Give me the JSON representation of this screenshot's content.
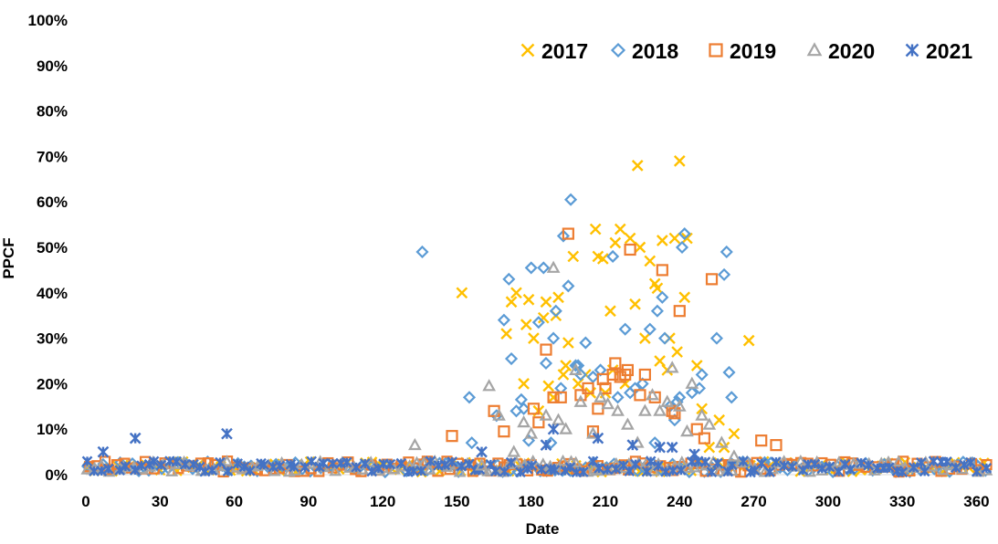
{
  "chart_data": {
    "type": "scatter",
    "xlabel": "Date",
    "ylabel": "PPCF",
    "xlim": [
      0,
      365
    ],
    "ylim": [
      0,
      1
    ],
    "x_ticks": [
      "0",
      "30",
      "60",
      "90",
      "120",
      "150",
      "180",
      "210",
      "240",
      "270",
      "300",
      "330",
      "360"
    ],
    "y_ticks": [
      "0%",
      "10%",
      "20%",
      "30%",
      "40%",
      "50%",
      "60%",
      "70%",
      "80%",
      "90%",
      "100%"
    ],
    "grid": false,
    "legend_position": "top-right",
    "series": [
      {
        "name": "2017",
        "marker": "x",
        "color": "#FFC000",
        "points": [
          [
            152,
            0.4
          ],
          [
            170,
            0.31
          ],
          [
            172,
            0.38
          ],
          [
            174,
            0.4
          ],
          [
            177,
            0.2
          ],
          [
            178,
            0.33
          ],
          [
            179,
            0.385
          ],
          [
            181,
            0.3
          ],
          [
            183,
            0.14
          ],
          [
            185,
            0.345
          ],
          [
            186,
            0.38
          ],
          [
            187,
            0.195
          ],
          [
            189,
            0.17
          ],
          [
            190,
            0.35
          ],
          [
            191,
            0.39
          ],
          [
            193,
            0.22
          ],
          [
            194,
            0.24
          ],
          [
            195,
            0.29
          ],
          [
            197,
            0.48
          ],
          [
            199,
            0.2
          ],
          [
            202,
            0.22
          ],
          [
            204,
            0.18
          ],
          [
            206,
            0.54
          ],
          [
            207,
            0.48
          ],
          [
            209,
            0.475
          ],
          [
            210,
            0.18
          ],
          [
            212,
            0.36
          ],
          [
            213,
            0.23
          ],
          [
            214,
            0.51
          ],
          [
            216,
            0.54
          ],
          [
            218,
            0.2
          ],
          [
            220,
            0.52
          ],
          [
            222,
            0.375
          ],
          [
            223,
            0.68
          ],
          [
            224,
            0.5
          ],
          [
            226,
            0.3
          ],
          [
            228,
            0.47
          ],
          [
            230,
            0.42
          ],
          [
            231,
            0.41
          ],
          [
            232,
            0.25
          ],
          [
            233,
            0.515
          ],
          [
            235,
            0.23
          ],
          [
            236,
            0.3
          ],
          [
            238,
            0.52
          ],
          [
            239,
            0.27
          ],
          [
            240,
            0.69
          ],
          [
            242,
            0.39
          ],
          [
            243,
            0.52
          ],
          [
            247,
            0.24
          ],
          [
            249,
            0.145
          ],
          [
            252,
            0.06
          ],
          [
            256,
            0.12
          ],
          [
            258,
            0.06
          ],
          [
            262,
            0.09
          ],
          [
            268,
            0.295
          ]
        ]
      },
      {
        "name": "2018",
        "marker": "diamond",
        "color": "#5B9BD5",
        "points": [
          [
            136,
            0.49
          ],
          [
            155,
            0.17
          ],
          [
            156,
            0.07
          ],
          [
            166,
            0.13
          ],
          [
            169,
            0.34
          ],
          [
            171,
            0.43
          ],
          [
            172,
            0.255
          ],
          [
            174,
            0.14
          ],
          [
            176,
            0.165
          ],
          [
            177,
            0.145
          ],
          [
            179,
            0.075
          ],
          [
            180,
            0.455
          ],
          [
            183,
            0.335
          ],
          [
            185,
            0.455
          ],
          [
            186,
            0.245
          ],
          [
            188,
            0.07
          ],
          [
            189,
            0.3
          ],
          [
            190,
            0.36
          ],
          [
            192,
            0.19
          ],
          [
            193,
            0.525
          ],
          [
            195,
            0.415
          ],
          [
            196,
            0.605
          ],
          [
            198,
            0.24
          ],
          [
            199,
            0.24
          ],
          [
            200,
            0.22
          ],
          [
            202,
            0.29
          ],
          [
            205,
            0.215
          ],
          [
            208,
            0.23
          ],
          [
            213,
            0.48
          ],
          [
            215,
            0.17
          ],
          [
            218,
            0.32
          ],
          [
            220,
            0.18
          ],
          [
            222,
            0.19
          ],
          [
            225,
            0.2
          ],
          [
            228,
            0.32
          ],
          [
            230,
            0.07
          ],
          [
            231,
            0.36
          ],
          [
            233,
            0.39
          ],
          [
            234,
            0.3
          ],
          [
            236,
            0.15
          ],
          [
            238,
            0.12
          ],
          [
            239,
            0.16
          ],
          [
            240,
            0.17
          ],
          [
            241,
            0.5
          ],
          [
            242,
            0.53
          ],
          [
            245,
            0.18
          ],
          [
            248,
            0.19
          ],
          [
            249,
            0.22
          ],
          [
            255,
            0.3
          ],
          [
            258,
            0.44
          ],
          [
            259,
            0.49
          ],
          [
            260,
            0.225
          ],
          [
            261,
            0.17
          ]
        ]
      },
      {
        "name": "2019",
        "marker": "square",
        "color": "#ED7D31",
        "points": [
          [
            148,
            0.085
          ],
          [
            165,
            0.14
          ],
          [
            169,
            0.095
          ],
          [
            181,
            0.145
          ],
          [
            183,
            0.115
          ],
          [
            186,
            0.275
          ],
          [
            189,
            0.17
          ],
          [
            192,
            0.17
          ],
          [
            195,
            0.53
          ],
          [
            200,
            0.175
          ],
          [
            203,
            0.19
          ],
          [
            205,
            0.095
          ],
          [
            207,
            0.145
          ],
          [
            209,
            0.21
          ],
          [
            210,
            0.19
          ],
          [
            213,
            0.22
          ],
          [
            214,
            0.245
          ],
          [
            216,
            0.215
          ],
          [
            218,
            0.22
          ],
          [
            219,
            0.23
          ],
          [
            220,
            0.495
          ],
          [
            224,
            0.175
          ],
          [
            226,
            0.22
          ],
          [
            230,
            0.17
          ],
          [
            233,
            0.45
          ],
          [
            237,
            0.14
          ],
          [
            238,
            0.135
          ],
          [
            240,
            0.36
          ],
          [
            247,
            0.1
          ],
          [
            250,
            0.08
          ],
          [
            253,
            0.43
          ],
          [
            273,
            0.075
          ],
          [
            279,
            0.065
          ]
        ]
      },
      {
        "name": "2020",
        "marker": "triangle",
        "color": "#A5A5A5",
        "points": [
          [
            133,
            0.065
          ],
          [
            160,
            0.02
          ],
          [
            163,
            0.195
          ],
          [
            167,
            0.13
          ],
          [
            173,
            0.05
          ],
          [
            177,
            0.115
          ],
          [
            180,
            0.09
          ],
          [
            186,
            0.13
          ],
          [
            189,
            0.455
          ],
          [
            191,
            0.12
          ],
          [
            194,
            0.1
          ],
          [
            198,
            0.23
          ],
          [
            200,
            0.16
          ],
          [
            205,
            0.09
          ],
          [
            208,
            0.17
          ],
          [
            211,
            0.155
          ],
          [
            215,
            0.14
          ],
          [
            219,
            0.11
          ],
          [
            223,
            0.07
          ],
          [
            226,
            0.14
          ],
          [
            229,
            0.175
          ],
          [
            232,
            0.14
          ],
          [
            235,
            0.16
          ],
          [
            237,
            0.235
          ],
          [
            240,
            0.15
          ],
          [
            243,
            0.095
          ],
          [
            245,
            0.2
          ],
          [
            249,
            0.13
          ],
          [
            252,
            0.11
          ],
          [
            257,
            0.07
          ],
          [
            262,
            0.04
          ]
        ]
      },
      {
        "name": "2021",
        "marker": "asterisk",
        "color": "#4472C4",
        "points": [
          [
            7,
            0.05
          ],
          [
            20,
            0.08
          ],
          [
            57,
            0.09
          ],
          [
            160,
            0.05
          ],
          [
            186,
            0.065
          ],
          [
            189,
            0.1
          ],
          [
            207,
            0.08
          ],
          [
            221,
            0.065
          ],
          [
            232,
            0.06
          ],
          [
            237,
            0.06
          ],
          [
            246,
            0.045
          ]
        ]
      }
    ]
  }
}
